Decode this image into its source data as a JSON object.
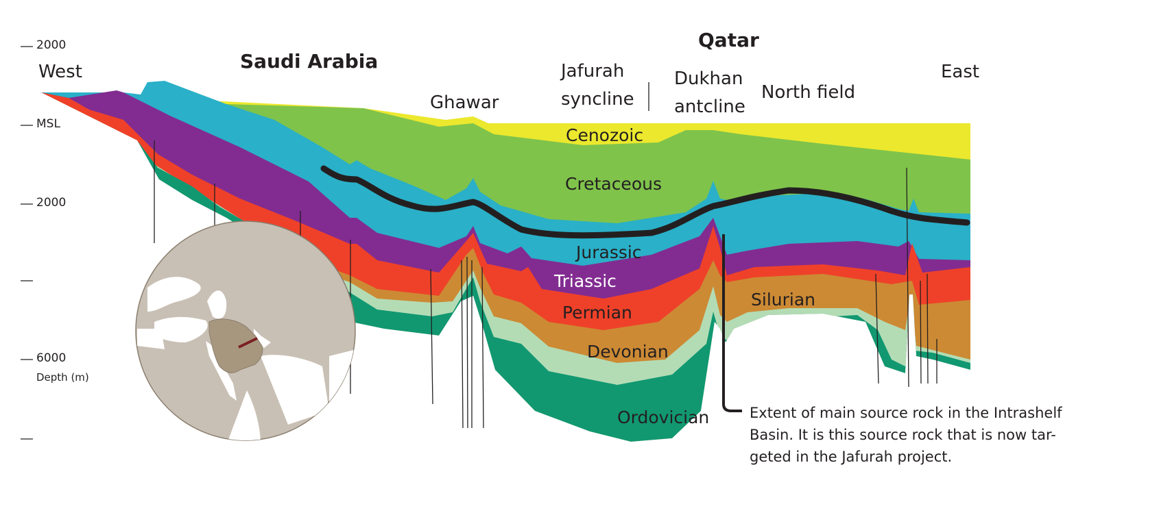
{
  "axis": {
    "ticks": [
      "2000",
      "MSL",
      "2000",
      "",
      "6000",
      ""
    ],
    "label": "Depth (m)"
  },
  "directions": {
    "west": "West",
    "east": "East"
  },
  "regions": {
    "saudi": "Saudi Arabia",
    "qatar": "Qatar"
  },
  "places": {
    "ghawar": "Ghawar",
    "jafurah_1": "Jafurah",
    "jafurah_2": "syncline",
    "dukhan_1": "Dukhan",
    "dukhan_2": "antcline",
    "north_field": "North field"
  },
  "layers": [
    {
      "name": "Cenozoic",
      "color": "#ebe82e"
    },
    {
      "name": "Cretaceous",
      "color": "#7fc34b"
    },
    {
      "name": "Jurassic",
      "color": "#2ab0c8"
    },
    {
      "name": "Triassic",
      "color": "#822c91"
    },
    {
      "name": "Permian",
      "color": "#ef4129"
    },
    {
      "name": "Devonian",
      "color": "#cc8a34"
    },
    {
      "name": "Silurian",
      "color": "#b3dcb5"
    },
    {
      "name": "Ordovician",
      "color": "#119871"
    }
  ],
  "source_rock_color": "#231f20",
  "callout": {
    "line1": "Extent of main source rock in the Intrashelf",
    "line2": "Basin. It is this source rock that is now tar-",
    "line3": "geted in the Jafurah project."
  }
}
